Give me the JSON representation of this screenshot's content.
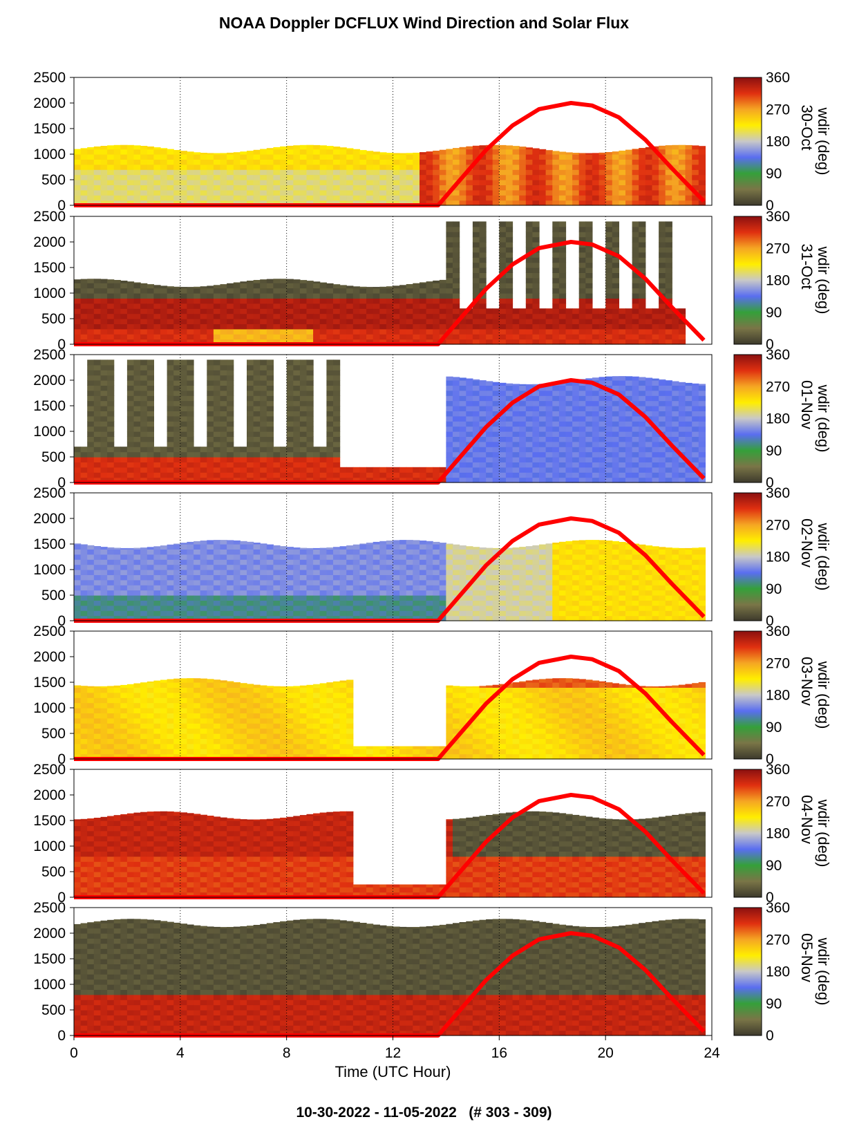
{
  "title": "NOAA Doppler DCFLUX Wind Direction and Solar Flux",
  "footer": "10-30-2022 - 11-05-2022   (# 303 - 309)",
  "colors": {
    "solar_flux_curve": "#ff0000",
    "colorbar_stops": [
      "#3d3a2c",
      "#7a7547",
      "#35a03a",
      "#5a6ef0",
      "#c8c8c8",
      "#ffee00",
      "#f5a623",
      "#e03010",
      "#8a1010"
    ]
  },
  "chart_data": {
    "type": "heatmap",
    "xlabel": "Time (UTC Hour)",
    "xlim": [
      0,
      24
    ],
    "x_ticks": [
      "0",
      "4",
      "8",
      "12",
      "16",
      "20",
      "24"
    ],
    "ylim": [
      0,
      2500
    ],
    "y_ticks": [
      "0",
      "500",
      "1000",
      "1500",
      "2000",
      "2500"
    ],
    "colorbar_label": "wdir (deg)",
    "colorbar_ticks": [
      "0",
      "90",
      "180",
      "270",
      "360"
    ],
    "colorbar_range": [
      0,
      360
    ],
    "grid": "vertical dotted lines at 4-hour intervals",
    "panels": [
      {
        "date": "30-Oct",
        "dominant": "yellow/orange at night shifting to red/dark at day",
        "layer_top": 1100,
        "data_end_hour": 23.7
      },
      {
        "date": "31-Oct",
        "dominant": "olive/dark (near 0/360) with red near surface",
        "layer_top": 1200,
        "data_end_hour": 22.8
      },
      {
        "date": "01-Nov",
        "dominant": "olive early, blue/steel-blue after 14 UTC",
        "layer_top": 2000,
        "data_end_hour": 23.7
      },
      {
        "date": "02-Nov",
        "dominant": "blue/lavender night, yellow/gray day",
        "layer_top": 1500,
        "data_end_hour": 23.7
      },
      {
        "date": "03-Nov",
        "dominant": "orange/yellow with red aloft late",
        "layer_top": 1500,
        "data_end_hour": 23.7
      },
      {
        "date": "04-Nov",
        "dominant": "dark red and olive",
        "layer_top": 1600,
        "data_end_hour": 23.7
      },
      {
        "date": "05-Nov",
        "dominant": "olive/dark aloft, dark red near surface",
        "layer_top": 2200,
        "data_end_hour": 23.7
      }
    ],
    "series": [
      {
        "name": "Solar Flux",
        "x": [
          13.7,
          14.5,
          15.5,
          16.5,
          17.5,
          18.7,
          19.5,
          20.5,
          21.5,
          22.5,
          23.7
        ],
        "y": [
          0,
          480,
          1080,
          1560,
          1880,
          2000,
          1950,
          1720,
          1280,
          720,
          80
        ]
      }
    ]
  }
}
